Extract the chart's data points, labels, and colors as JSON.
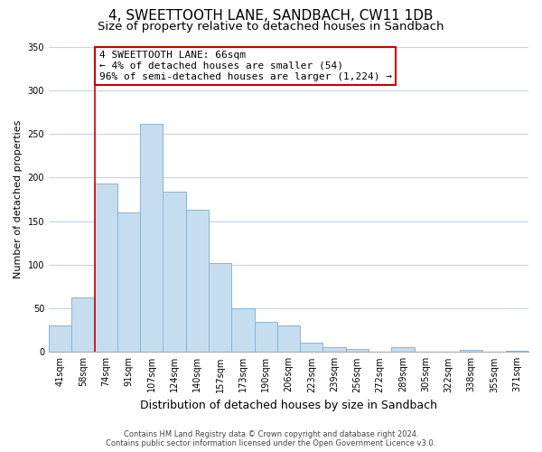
{
  "title": "4, SWEETTOOTH LANE, SANDBACH, CW11 1DB",
  "subtitle": "Size of property relative to detached houses in Sandbach",
  "xlabel": "Distribution of detached houses by size in Sandbach",
  "ylabel": "Number of detached properties",
  "bar_labels": [
    "41sqm",
    "58sqm",
    "74sqm",
    "91sqm",
    "107sqm",
    "124sqm",
    "140sqm",
    "157sqm",
    "173sqm",
    "190sqm",
    "206sqm",
    "223sqm",
    "239sqm",
    "256sqm",
    "272sqm",
    "289sqm",
    "305sqm",
    "322sqm",
    "338sqm",
    "355sqm",
    "371sqm"
  ],
  "bar_values": [
    30,
    63,
    193,
    160,
    261,
    184,
    163,
    102,
    50,
    34,
    30,
    11,
    5,
    3,
    0,
    5,
    0,
    0,
    2,
    0,
    1
  ],
  "bar_color": "#c6ddf0",
  "bar_edge_color": "#8ab4d4",
  "vline_x_index": 1,
  "vline_color": "#cc0000",
  "annotation_text": "4 SWEETTOOTH LANE: 66sqm\n← 4% of detached houses are smaller (54)\n96% of semi-detached houses are larger (1,224) →",
  "annotation_box_color": "#ffffff",
  "annotation_box_edge_color": "#cc0000",
  "ylim": [
    0,
    350
  ],
  "yticks": [
    0,
    50,
    100,
    150,
    200,
    250,
    300,
    350
  ],
  "footnote_line1": "Contains HM Land Registry data © Crown copyright and database right 2024.",
  "footnote_line2": "Contains public sector information licensed under the Open Government Licence v3.0.",
  "background_color": "#ffffff",
  "grid_color": "#c8d4e8",
  "title_fontsize": 11,
  "subtitle_fontsize": 9.5,
  "ylabel_fontsize": 8,
  "xlabel_fontsize": 9,
  "tick_fontsize": 7,
  "annot_fontsize": 8,
  "footnote_fontsize": 6
}
